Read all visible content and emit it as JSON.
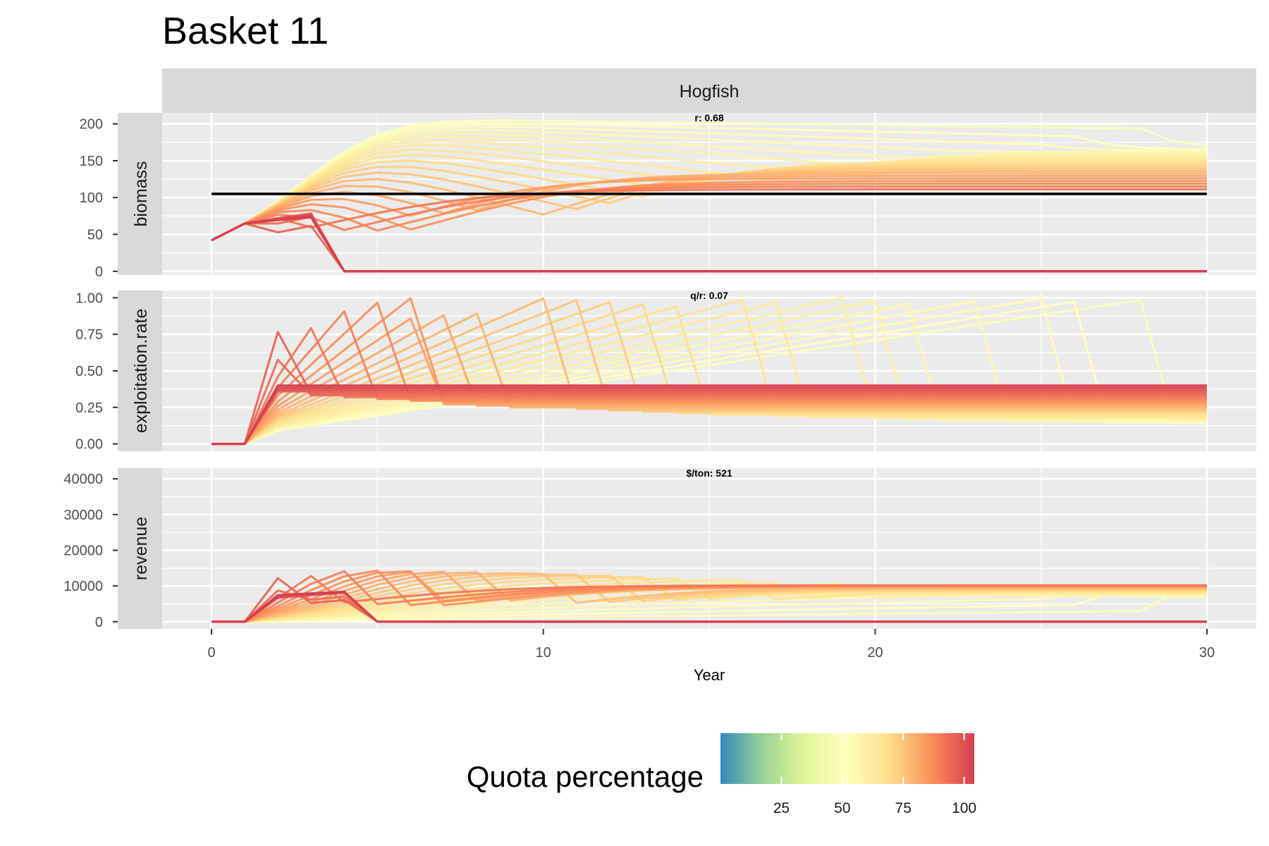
{
  "chart_data": {
    "type": "line",
    "title": "Basket 11",
    "facet_label": "Hogfish",
    "xlabel": "Year",
    "xlim": [
      0,
      30
    ],
    "x_ticks": [
      0,
      10,
      20,
      30
    ],
    "x_tick_labels": [
      "0",
      "10",
      "20",
      "30"
    ],
    "grid": true,
    "color_scale": {
      "palette": "Spectral (reversed)",
      "colors": [
        "#3288bd",
        "#99d594",
        "#e6f598",
        "#ffffbf",
        "#fee08b",
        "#fc8d59",
        "#d53e4f"
      ],
      "range": [
        0,
        100
      ],
      "ticks": [
        25,
        50,
        75,
        100
      ],
      "tick_labels": [
        "25",
        "50",
        "75",
        "100"
      ]
    },
    "quota_percentages": [
      48,
      50,
      52,
      54,
      56,
      58,
      60,
      62,
      64,
      66,
      68,
      70,
      72,
      74,
      76,
      78,
      80,
      82,
      84,
      86,
      88,
      90,
      92,
      94,
      96,
      98,
      100
    ],
    "legend": {
      "title": "Quota percentage",
      "position": "bottom"
    },
    "panels": [
      {
        "ylabel": "biomass",
        "ylim": [
          -5,
          215
        ],
        "y_ticks": [
          0,
          50,
          100,
          150,
          200
        ],
        "y_tick_labels": [
          "0",
          "50",
          "100",
          "150",
          "200"
        ],
        "annotation": "r:  0.68",
        "reference_line": {
          "y": 105,
          "color": "#000000"
        }
      },
      {
        "ylabel": "exploitation.rate",
        "ylim": [
          -0.05,
          1.05
        ],
        "y_ticks": [
          0,
          0.25,
          0.5,
          0.75,
          1
        ],
        "y_tick_labels": [
          "0.00",
          "0.25",
          "0.50",
          "0.75",
          "1.00"
        ],
        "annotation": "q/r:  0.07"
      },
      {
        "ylabel": "revenue",
        "ylim": [
          -2000,
          43000
        ],
        "y_ticks": [
          0,
          10000,
          20000,
          30000,
          40000
        ],
        "y_tick_labels": [
          "0",
          "10000",
          "20000",
          "30000",
          "40000"
        ],
        "annotation": "$/ton:  521"
      }
    ],
    "model": {
      "growth_rate_r": 0.68,
      "carrying_capacity": 210,
      "initial_biomass": 42,
      "price_per_ton": 521,
      "equilibrium_exploitation_rate": 0.4
    }
  }
}
